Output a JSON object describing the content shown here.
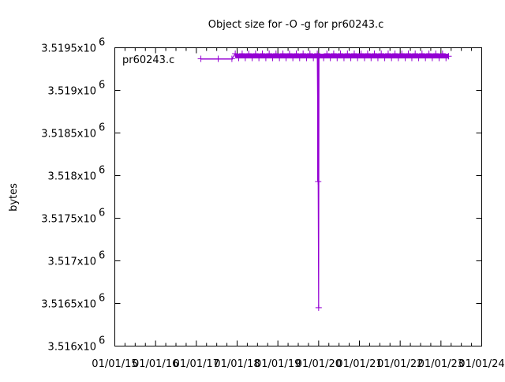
{
  "chart_data": {
    "type": "line",
    "title": "Object size for -O -g for pr60243.c",
    "xlabel": "",
    "ylabel": "bytes",
    "xlim": [
      "2015-01-01",
      "2024-01-01"
    ],
    "ylim": [
      3516000.0,
      3519500.0
    ],
    "x_ticks": [
      "01/01/15",
      "01/01/16",
      "01/01/17",
      "01/01/18",
      "01/01/19",
      "01/01/20",
      "01/01/21",
      "01/01/22",
      "01/01/23",
      "01/01/24"
    ],
    "y_ticks": [
      {
        "value": 3516000.0,
        "mantissa": "3.516x10",
        "exp": "6"
      },
      {
        "value": 3516500.0,
        "mantissa": "3.5165x10",
        "exp": "6"
      },
      {
        "value": 3517000.0,
        "mantissa": "3.517x10",
        "exp": "6"
      },
      {
        "value": 3517500.0,
        "mantissa": "3.5175x10",
        "exp": "6"
      },
      {
        "value": 3518000.0,
        "mantissa": "3.518x10",
        "exp": "6"
      },
      {
        "value": 3518500.0,
        "mantissa": "3.5185x10",
        "exp": "6"
      },
      {
        "value": 3519000.0,
        "mantissa": "3.519x10",
        "exp": "6"
      },
      {
        "value": 3519500.0,
        "mantissa": "3.5195x10",
        "exp": "6"
      }
    ],
    "legend": {
      "placement": "top-left",
      "label": "pr60243.c"
    },
    "grid": false,
    "series": [
      {
        "name": "pr60243.c",
        "color": "#9400d3",
        "points": [
          [
            "2017-02-10",
            3519370
          ],
          [
            "2017-07-15",
            3519370
          ],
          [
            "2017-11-15",
            3519370
          ],
          [
            "2017-12-15",
            3519430
          ],
          [
            "2018-01-15",
            3519380
          ],
          [
            "2018-02-15",
            3519430
          ],
          [
            "2018-03-15",
            3519380
          ],
          [
            "2018-04-15",
            3519430
          ],
          [
            "2018-05-15",
            3519380
          ],
          [
            "2018-06-15",
            3519430
          ],
          [
            "2018-07-15",
            3519380
          ],
          [
            "2018-08-15",
            3519430
          ],
          [
            "2018-09-15",
            3519380
          ],
          [
            "2018-10-15",
            3519430
          ],
          [
            "2018-11-15",
            3519380
          ],
          [
            "2018-12-15",
            3519430
          ],
          [
            "2019-01-15",
            3519380
          ],
          [
            "2019-02-15",
            3519430
          ],
          [
            "2019-03-15",
            3519380
          ],
          [
            "2019-04-15",
            3519430
          ],
          [
            "2019-05-15",
            3519380
          ],
          [
            "2019-06-15",
            3519430
          ],
          [
            "2019-07-15",
            3519380
          ],
          [
            "2019-08-15",
            3519430
          ],
          [
            "2019-09-15",
            3519380
          ],
          [
            "2019-10-15",
            3519430
          ],
          [
            "2019-11-15",
            3519380
          ],
          [
            "2019-12-20",
            3519430
          ],
          [
            "2019-12-28",
            3517930
          ],
          [
            "2020-01-01",
            3516450
          ],
          [
            "2020-01-04",
            3519400
          ],
          [
            "2020-02-15",
            3519380
          ],
          [
            "2020-03-15",
            3519430
          ],
          [
            "2020-04-15",
            3519380
          ],
          [
            "2020-05-15",
            3519430
          ],
          [
            "2020-06-15",
            3519380
          ],
          [
            "2020-07-15",
            3519430
          ],
          [
            "2020-08-15",
            3519380
          ],
          [
            "2020-09-15",
            3519430
          ],
          [
            "2020-10-15",
            3519380
          ],
          [
            "2020-11-15",
            3519430
          ],
          [
            "2020-12-15",
            3519380
          ],
          [
            "2021-01-15",
            3519430
          ],
          [
            "2021-02-15",
            3519380
          ],
          [
            "2021-03-15",
            3519430
          ],
          [
            "2021-04-15",
            3519380
          ],
          [
            "2021-05-15",
            3519430
          ],
          [
            "2021-06-15",
            3519380
          ],
          [
            "2021-07-15",
            3519430
          ],
          [
            "2021-08-15",
            3519380
          ],
          [
            "2021-09-15",
            3519430
          ],
          [
            "2021-10-15",
            3519380
          ],
          [
            "2021-11-15",
            3519430
          ],
          [
            "2021-12-15",
            3519380
          ],
          [
            "2022-01-15",
            3519430
          ],
          [
            "2022-02-15",
            3519380
          ],
          [
            "2022-03-15",
            3519430
          ],
          [
            "2022-04-15",
            3519380
          ],
          [
            "2022-05-15",
            3519430
          ],
          [
            "2022-06-15",
            3519380
          ],
          [
            "2022-07-15",
            3519430
          ],
          [
            "2022-08-15",
            3519380
          ],
          [
            "2022-09-15",
            3519430
          ],
          [
            "2022-10-15",
            3519380
          ],
          [
            "2022-11-15",
            3519430
          ],
          [
            "2022-12-15",
            3519380
          ],
          [
            "2023-01-15",
            3519430
          ],
          [
            "2023-02-15",
            3519380
          ],
          [
            "2023-03-10",
            3519400
          ]
        ]
      }
    ]
  }
}
